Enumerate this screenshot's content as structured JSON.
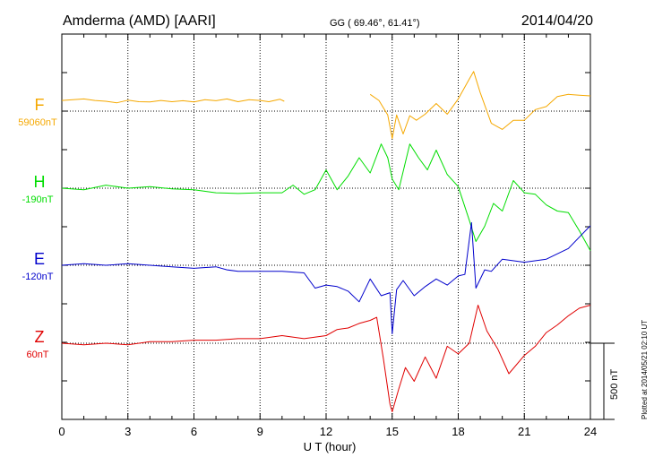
{
  "header": {
    "station": "Amderma (AMD)  [AARI]",
    "coords": "GG ( 69.46°,  61.41°)",
    "date": "2014/04/20"
  },
  "footer": {
    "xlabel": "U T (hour)",
    "plotted": "Plotted at 2014/05/21 02:10 UT"
  },
  "scale_label": "500 nT",
  "colors": {
    "F": "#f5a800",
    "H": "#00dd00",
    "E": "#0000cc",
    "Z": "#e00000",
    "axis": "#000000"
  },
  "chart_data": {
    "type": "line",
    "xlabel": "U T (hour)",
    "xlim": [
      0,
      24
    ],
    "x_ticks": [
      0,
      3,
      6,
      9,
      12,
      15,
      18,
      21,
      24
    ],
    "x_tick_labels": [
      "0",
      "3",
      "6",
      "9",
      "12",
      "15",
      "18",
      "21",
      "24"
    ],
    "scale_bar_nT": 500,
    "series": [
      {
        "name": "F",
        "baseline": "59060nT",
        "x": [
          0,
          0.5,
          1,
          1.5,
          2,
          2.5,
          3,
          3.5,
          4,
          4.5,
          5,
          5.5,
          6,
          6.5,
          7,
          7.5,
          8,
          8.5,
          9,
          9.4,
          9.9,
          10.1,
          null,
          14,
          14.4,
          14.8,
          15,
          15.2,
          15.5,
          15.8,
          16.1,
          16.5,
          17,
          17.5,
          18,
          18.5,
          18.7,
          19,
          19.5,
          20,
          20.5,
          21,
          21.5,
          22,
          22.5,
          23,
          23.5,
          24
        ],
        "y": [
          70,
          75,
          80,
          70,
          65,
          55,
          72,
          62,
          60,
          70,
          62,
          68,
          60,
          75,
          68,
          80,
          62,
          75,
          70,
          62,
          78,
          65,
          null,
          110,
          70,
          -25,
          -180,
          -25,
          -150,
          -30,
          -60,
          -20,
          50,
          -20,
          80,
          210,
          260,
          120,
          -80,
          -120,
          -60,
          -60,
          10,
          30,
          95,
          110,
          105,
          100
        ]
      },
      {
        "name": "H",
        "baseline": "-190nT",
        "x": [
          0,
          1,
          2,
          3,
          4,
          5,
          6,
          7,
          8,
          9,
          10,
          10.5,
          11,
          11.5,
          12,
          12.5,
          13,
          13.5,
          14,
          14.5,
          14.8,
          15,
          15.3,
          15.8,
          16.2,
          16.6,
          17,
          17.5,
          18,
          18.5,
          18.8,
          19.2,
          19.6,
          20,
          20.5,
          21,
          21.5,
          22,
          22.5,
          23,
          23.5,
          24
        ],
        "y": [
          0,
          -10,
          20,
          0,
          10,
          -5,
          -10,
          -30,
          -35,
          -30,
          -30,
          20,
          -40,
          -10,
          120,
          -10,
          80,
          200,
          100,
          290,
          200,
          60,
          -10,
          290,
          200,
          120,
          250,
          90,
          10,
          -210,
          -350,
          -250,
          -100,
          -150,
          50,
          -30,
          -40,
          -110,
          -150,
          -160,
          -280,
          -410
        ]
      },
      {
        "name": "E",
        "baseline": "-120nT",
        "x": [
          0,
          1,
          2,
          3,
          4,
          5,
          6,
          7,
          7.5,
          8,
          9,
          10,
          11,
          11.5,
          12,
          12.5,
          13,
          13.5,
          14,
          14.5,
          14.9,
          15,
          15.2,
          15.5,
          16,
          16.5,
          17,
          17.5,
          18,
          18.3,
          18.6,
          18.8,
          19.2,
          19.5,
          20,
          21,
          22,
          23,
          24
        ],
        "y": [
          0,
          10,
          0,
          10,
          0,
          -10,
          -20,
          -10,
          -30,
          -40,
          -40,
          -40,
          -50,
          -150,
          -130,
          -140,
          -170,
          -240,
          -90,
          -200,
          -180,
          -450,
          -160,
          -100,
          -200,
          -140,
          -90,
          -130,
          -70,
          -60,
          280,
          -150,
          -30,
          -40,
          40,
          20,
          40,
          110,
          260
        ]
      },
      {
        "name": "Z",
        "baseline": "60nT",
        "x": [
          0,
          1,
          2,
          3,
          4,
          5,
          6,
          7,
          8,
          9,
          10,
          11,
          12,
          12.5,
          13,
          13.5,
          14,
          14.3,
          14.6,
          14.9,
          15,
          15.3,
          15.6,
          16,
          16.5,
          17,
          17.5,
          18,
          18.5,
          18.9,
          19.3,
          19.8,
          20.3,
          21,
          21.5,
          22,
          22.5,
          23,
          23.5,
          24
        ],
        "y": [
          0,
          -10,
          0,
          -10,
          10,
          10,
          20,
          20,
          30,
          30,
          50,
          30,
          50,
          90,
          100,
          130,
          150,
          170,
          -100,
          -400,
          -450,
          -300,
          -160,
          -250,
          -90,
          -230,
          -20,
          -70,
          0,
          250,
          80,
          -40,
          -200,
          -80,
          -20,
          70,
          120,
          180,
          230,
          250
        ]
      }
    ]
  }
}
